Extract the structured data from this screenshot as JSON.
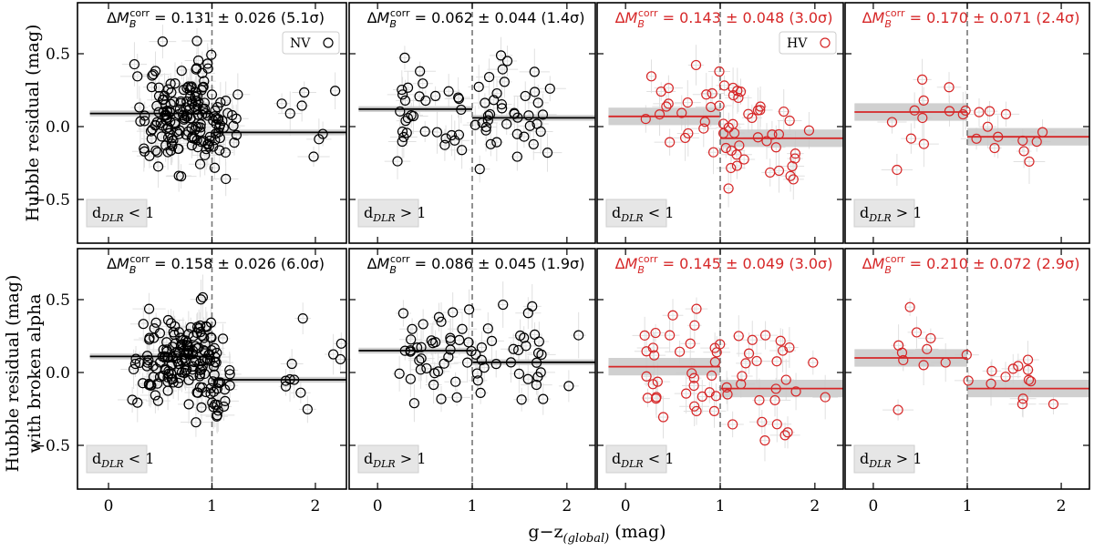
{
  "figure": {
    "ylabel_top": "Hubble residual (mag)",
    "ylabel_bottom_line1": "Hubble residual (mag)",
    "ylabel_bottom_line2": "with broken alpha",
    "xlabel": "g−z(global) (mag)",
    "xlabel_main": "g−z",
    "xlabel_sub": "(global)",
    "xlabel_unit": " (mag)",
    "xticks": [
      "0",
      "1",
      "2"
    ],
    "yticks": [
      "0.5",
      "0.0",
      "−0.5"
    ],
    "colors": {
      "NV": "#000000",
      "HV": "#d62728",
      "band": "#c8c8c8",
      "errbar": "#e0e0e0",
      "divider": "#777777"
    }
  },
  "chart_data": [
    {
      "type": "scatter",
      "row": 0,
      "col": 0,
      "sample": "NV",
      "delta": "0.131",
      "err": "0.026",
      "sigma": "5.1",
      "legend": "NV",
      "region_main": "d",
      "region_sub": "DLR",
      "region_op": " < 1",
      "split_x": 1.0,
      "left_mean": 0.09,
      "right_mean": -0.04,
      "left_range": [
        -0.18,
        1.0
      ],
      "right_range": [
        1.0,
        2.3
      ],
      "xlim": [
        -0.3,
        2.3
      ],
      "ylim": [
        -0.8,
        0.85
      ],
      "n_points": 190,
      "seed": 11
    },
    {
      "type": "scatter",
      "row": 0,
      "col": 1,
      "sample": "NV",
      "delta": "0.062",
      "err": "0.044",
      "sigma": "1.4",
      "legend": "",
      "region_main": "d",
      "region_sub": "DLR",
      "region_op": " > 1",
      "split_x": 1.0,
      "left_mean": 0.12,
      "right_mean": 0.06,
      "left_range": [
        -0.2,
        1.0
      ],
      "right_range": [
        1.0,
        2.3
      ],
      "xlim": [
        -0.3,
        2.3
      ],
      "ylim": [
        -0.8,
        0.85
      ],
      "n_points": 72,
      "seed": 23
    },
    {
      "type": "scatter",
      "row": 0,
      "col": 2,
      "sample": "HV",
      "delta": "0.143",
      "err": "0.048",
      "sigma": "3.0",
      "legend": "HV",
      "region_main": "d",
      "region_sub": "DLR",
      "region_op": " < 1",
      "split_x": 1.0,
      "left_mean": 0.07,
      "right_mean": -0.08,
      "left_range": [
        -0.18,
        1.0
      ],
      "right_range": [
        1.0,
        2.3
      ],
      "xlim": [
        -0.3,
        2.3
      ],
      "ylim": [
        -0.8,
        0.85
      ],
      "n_points": 60,
      "seed": 37
    },
    {
      "type": "scatter",
      "row": 0,
      "col": 3,
      "sample": "HV",
      "delta": "0.170",
      "err": "0.071",
      "sigma": "2.4",
      "legend": "",
      "region_main": "d",
      "region_sub": "DLR",
      "region_op": " > 1",
      "split_x": 1.0,
      "left_mean": 0.1,
      "right_mean": -0.07,
      "left_range": [
        -0.2,
        1.0
      ],
      "right_range": [
        1.0,
        2.3
      ],
      "xlim": [
        -0.3,
        2.3
      ],
      "ylim": [
        -0.8,
        0.85
      ],
      "n_points": 24,
      "seed": 41
    },
    {
      "type": "scatter",
      "row": 1,
      "col": 0,
      "sample": "NV",
      "delta": "0.158",
      "err": "0.026",
      "sigma": "6.0",
      "legend": "",
      "region_main": "d",
      "region_sub": "DLR",
      "region_op": " < 1",
      "split_x": 1.0,
      "left_mean": 0.11,
      "right_mean": -0.05,
      "left_range": [
        -0.18,
        1.0
      ],
      "right_range": [
        1.0,
        2.3
      ],
      "xlim": [
        -0.3,
        2.3
      ],
      "ylim": [
        -0.8,
        0.85
      ],
      "n_points": 190,
      "seed": 53
    },
    {
      "type": "scatter",
      "row": 1,
      "col": 1,
      "sample": "NV",
      "delta": "0.086",
      "err": "0.045",
      "sigma": "1.9",
      "legend": "",
      "region_main": "d",
      "region_sub": "DLR",
      "region_op": " > 1",
      "split_x": 1.0,
      "left_mean": 0.15,
      "right_mean": 0.07,
      "left_range": [
        -0.2,
        1.0
      ],
      "right_range": [
        1.0,
        2.3
      ],
      "xlim": [
        -0.3,
        2.3
      ],
      "ylim": [
        -0.8,
        0.85
      ],
      "n_points": 72,
      "seed": 67
    },
    {
      "type": "scatter",
      "row": 1,
      "col": 2,
      "sample": "HV",
      "delta": "0.145",
      "err": "0.049",
      "sigma": "3.0",
      "legend": "",
      "region_main": "d",
      "region_sub": "DLR",
      "region_op": " < 1",
      "split_x": 1.0,
      "left_mean": 0.04,
      "right_mean": -0.11,
      "left_range": [
        -0.18,
        1.0
      ],
      "right_range": [
        1.0,
        2.3
      ],
      "xlim": [
        -0.3,
        2.3
      ],
      "ylim": [
        -0.8,
        0.85
      ],
      "n_points": 60,
      "seed": 79
    },
    {
      "type": "scatter",
      "row": 1,
      "col": 3,
      "sample": "HV",
      "delta": "0.210",
      "err": "0.072",
      "sigma": "2.9",
      "legend": "",
      "region_main": "d",
      "region_sub": "DLR",
      "region_op": " > 1",
      "split_x": 1.0,
      "left_mean": 0.1,
      "right_mean": -0.11,
      "left_range": [
        -0.2,
        1.0
      ],
      "right_range": [
        1.0,
        2.3
      ],
      "xlim": [
        -0.3,
        2.3
      ],
      "ylim": [
        -0.8,
        0.85
      ],
      "n_points": 24,
      "seed": 97
    }
  ]
}
